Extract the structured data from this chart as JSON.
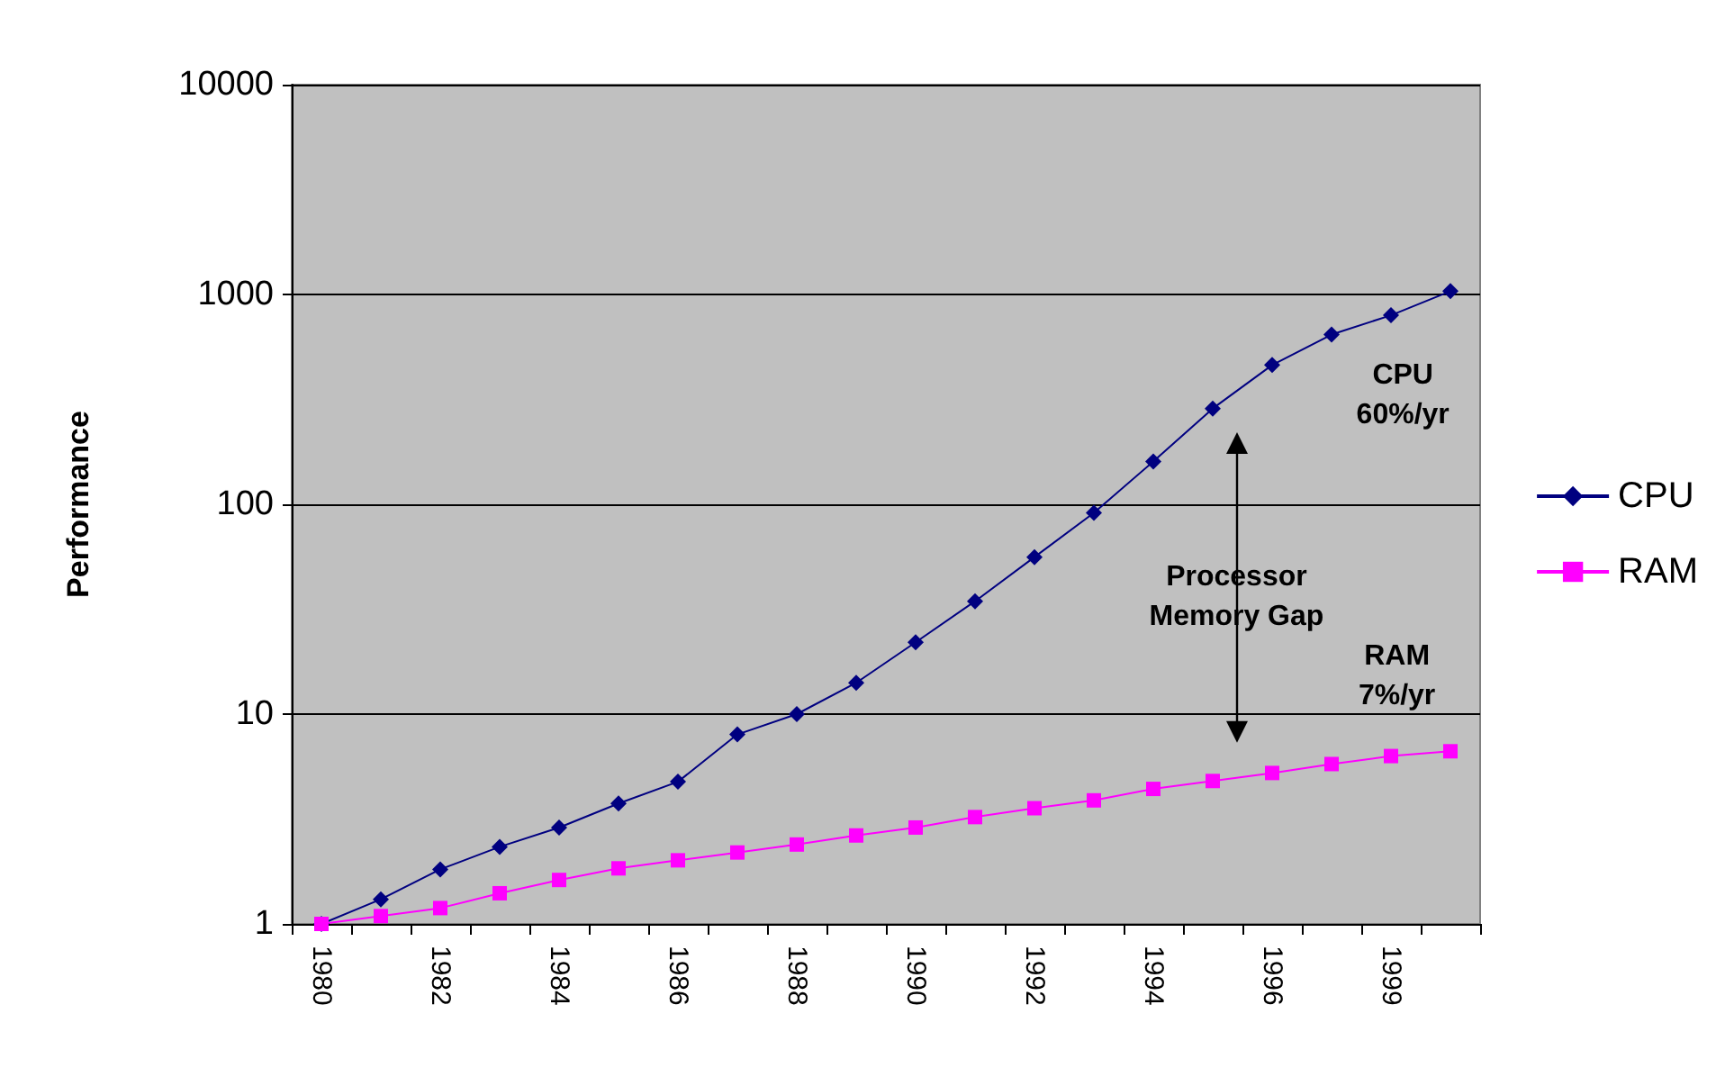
{
  "chart_data": {
    "type": "line",
    "ylabel": "Performance",
    "categories": [
      "1980",
      null,
      "1982",
      null,
      "1984",
      null,
      "1986",
      null,
      "1988",
      null,
      "1990",
      null,
      "1992",
      null,
      "1994",
      null,
      "1996",
      null,
      "1999",
      null
    ],
    "series": [
      {
        "name": "CPU",
        "color": "#000080",
        "marker": "diamond",
        "values": [
          1,
          1.31,
          1.82,
          2.33,
          2.88,
          3.75,
          4.76,
          8.0,
          10,
          14.1,
          22,
          34.5,
          56,
          91,
          160,
          286,
          461,
          644,
          796,
          1037
        ]
      },
      {
        "name": "RAM",
        "color": "#ff00ff",
        "marker": "square",
        "values": [
          1,
          1.09,
          1.19,
          1.4,
          1.62,
          1.84,
          2.01,
          2.19,
          2.39,
          2.64,
          2.88,
          3.23,
          3.56,
          3.88,
          4.4,
          4.8,
          5.24,
          5.78,
          6.31,
          6.65
        ]
      }
    ],
    "log": "y",
    "ylim": [
      1,
      10000
    ],
    "yticks": [
      1,
      10,
      100,
      1000,
      10000
    ],
    "grid": "y",
    "legend": "right",
    "annotations": [
      "CPU\n60%/yr",
      "Processor\nMemory Gap",
      "RAM\n7%/yr"
    ]
  }
}
